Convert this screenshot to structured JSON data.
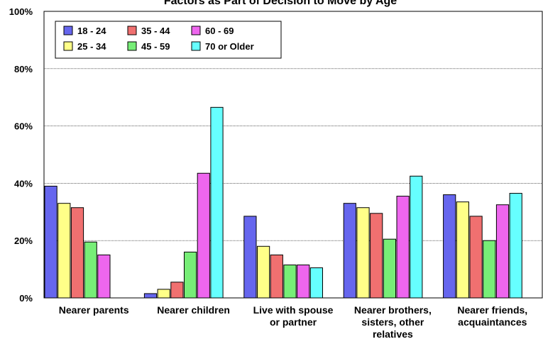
{
  "chart_data": {
    "type": "bar",
    "title": "Factors as Part of Decision to Move by Age",
    "xlabel": "",
    "ylabel": "",
    "ylim": [
      0,
      100
    ],
    "y_ticks": [
      "0%",
      "20%",
      "40%",
      "60%",
      "80%",
      "100%"
    ],
    "grid": true,
    "legend_position": "top-left",
    "categories": [
      "Nearer parents",
      "Nearer children",
      "Live with spouse or partner",
      "Nearer brothers, sisters, other relatives",
      "Nearer friends, acquaintances"
    ],
    "category_lines": [
      [
        "Nearer parents"
      ],
      [
        "Nearer children"
      ],
      [
        "Live with spouse",
        "or partner"
      ],
      [
        "Nearer brothers,",
        "sisters, other",
        "relatives"
      ],
      [
        "Nearer friends,",
        "acquaintances"
      ]
    ],
    "series": [
      {
        "name": "18 - 24",
        "color": "#6666ee",
        "values": [
          39,
          1.5,
          28.5,
          33,
          36
        ]
      },
      {
        "name": "25 - 34",
        "color": "#ffff88",
        "values": [
          33,
          3,
          18,
          31.5,
          33.5
        ]
      },
      {
        "name": "35 - 44",
        "color": "#f07070",
        "values": [
          31.5,
          5.5,
          15,
          29.5,
          28.5
        ]
      },
      {
        "name": "45 - 59",
        "color": "#77ee77",
        "values": [
          19.5,
          16,
          11.5,
          20.5,
          20
        ]
      },
      {
        "name": "60 - 69",
        "color": "#ee66ee",
        "values": [
          15,
          43.5,
          11.5,
          35.5,
          32.5
        ]
      },
      {
        "name": "70 or Older",
        "color": "#66ffff",
        "values": [
          null,
          66.5,
          10.5,
          42.5,
          36.5
        ]
      }
    ],
    "legend_order": [
      0,
      2,
      4,
      1,
      3,
      5
    ]
  }
}
